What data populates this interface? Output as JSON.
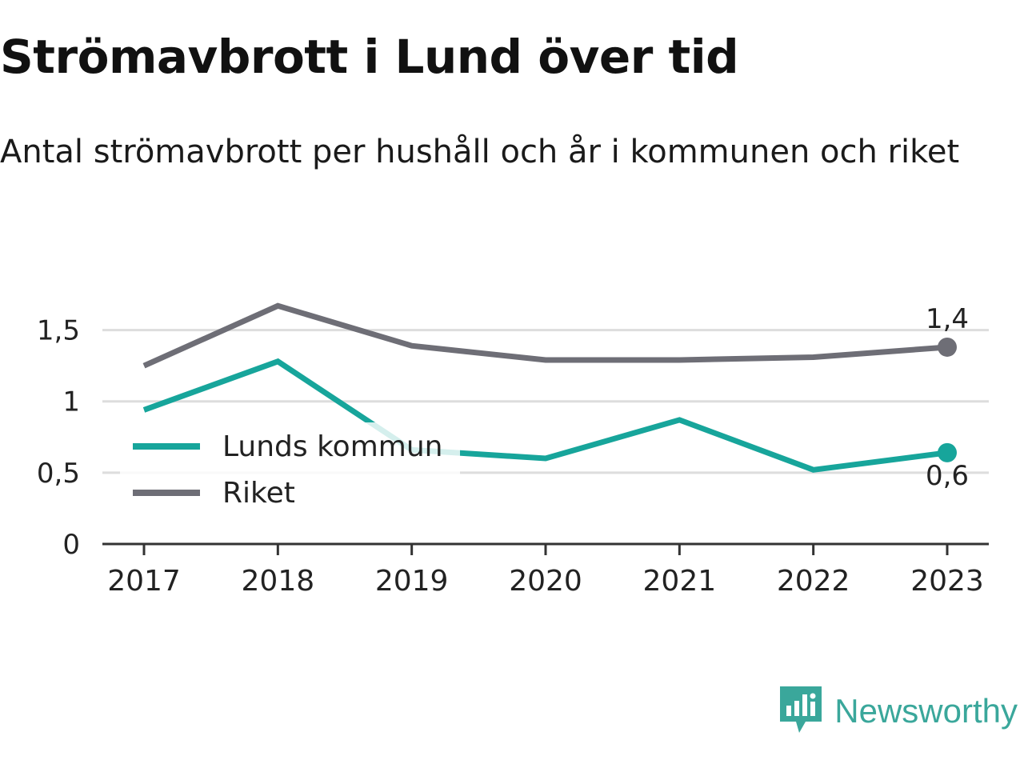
{
  "title": "Strömavbrott i Lund över tid",
  "subtitle": "Antal strömavbrott per hushåll och år i kommunen och riket",
  "brand": {
    "name": "Newsworthy"
  },
  "colors": {
    "lund": "#17a59b",
    "riket": "#6e6e76",
    "grid": "#dddddd",
    "axis": "#333333",
    "text": "#222222",
    "brand": "#3aa79b"
  },
  "chart_data": {
    "type": "line",
    "categories": [
      "2017",
      "2018",
      "2019",
      "2020",
      "2021",
      "2022",
      "2023"
    ],
    "ylim": [
      0,
      1.75
    ],
    "yticks": [
      0,
      0.5,
      1,
      1.5
    ],
    "ytick_labels": [
      "0",
      "0,5",
      "1",
      "1,5"
    ],
    "grid": true,
    "legend_position": "left-middle",
    "series": [
      {
        "name": "Lunds kommun",
        "color": "#17a59b",
        "values": [
          0.94,
          1.28,
          0.66,
          0.6,
          0.87,
          0.52,
          0.64
        ],
        "end_label": "0,6",
        "end_label_position": "below"
      },
      {
        "name": "Riket",
        "color": "#6e6e76",
        "values": [
          1.25,
          1.67,
          1.39,
          1.29,
          1.29,
          1.31,
          1.38
        ],
        "end_label": "1,4",
        "end_label_position": "above"
      }
    ]
  }
}
